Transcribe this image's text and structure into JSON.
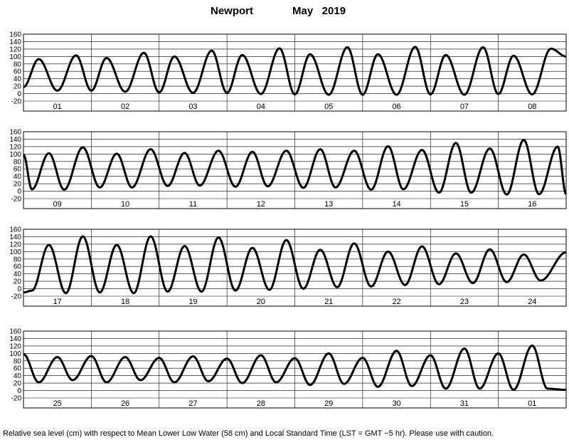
{
  "header": {
    "station": "Newport",
    "month_year": "May   2019"
  },
  "footer": {
    "caption": "Relative sea level (cm) with respect to Mean Lower Low Water (58 cm) and Local Standard Time (LST = GMT −5 hr). Please use with caution."
  },
  "chart_data": {
    "type": "line",
    "y_unit": "cm",
    "ylim": [
      -20,
      160
    ],
    "yticks": [
      -20,
      0,
      20,
      40,
      60,
      80,
      100,
      120,
      140,
      160
    ],
    "grid": true,
    "panels": [
      {
        "day_labels": [
          "01",
          "02",
          "03",
          "04",
          "05",
          "06",
          "07",
          "08"
        ],
        "extrema": [
          [
            0,
            18
          ],
          [
            0.45,
            93
          ],
          [
            1,
            8
          ],
          [
            1.55,
            103
          ],
          [
            2,
            8
          ],
          [
            2.45,
            96
          ],
          [
            3,
            5
          ],
          [
            3.55,
            110
          ],
          [
            4,
            3
          ],
          [
            4.45,
            100
          ],
          [
            5,
            2
          ],
          [
            5.55,
            116
          ],
          [
            6,
            2
          ],
          [
            6.45,
            104
          ],
          [
            7,
            -1
          ],
          [
            7.55,
            122
          ],
          [
            8,
            -2
          ],
          [
            8.45,
            106
          ],
          [
            9,
            -3
          ],
          [
            9.55,
            125
          ],
          [
            10,
            -3
          ],
          [
            10.45,
            106
          ],
          [
            11,
            -3
          ],
          [
            11.55,
            126
          ],
          [
            12,
            -2
          ],
          [
            12.45,
            104
          ],
          [
            13,
            -3
          ],
          [
            13.55,
            125
          ],
          [
            14,
            -1
          ],
          [
            14.45,
            102
          ],
          [
            15,
            -2
          ],
          [
            15.55,
            121
          ],
          [
            16,
            100
          ]
        ]
      },
      {
        "day_labels": [
          "09",
          "10",
          "11",
          "12",
          "13",
          "14",
          "15",
          "16"
        ],
        "extrema": [
          [
            0,
            98
          ],
          [
            0.25,
            5
          ],
          [
            0.75,
            102
          ],
          [
            1.2,
            4
          ],
          [
            1.75,
            118
          ],
          [
            2.25,
            10
          ],
          [
            2.75,
            101
          ],
          [
            3.2,
            10
          ],
          [
            3.75,
            113
          ],
          [
            4.25,
            14
          ],
          [
            4.75,
            103
          ],
          [
            5.2,
            15
          ],
          [
            5.75,
            109
          ],
          [
            6.25,
            12
          ],
          [
            6.75,
            106
          ],
          [
            7.2,
            13
          ],
          [
            7.75,
            109
          ],
          [
            8.25,
            9
          ],
          [
            8.75,
            113
          ],
          [
            9.2,
            10
          ],
          [
            9.75,
            109
          ],
          [
            10.25,
            4
          ],
          [
            10.75,
            121
          ],
          [
            11.2,
            5
          ],
          [
            11.75,
            111
          ],
          [
            12.25,
            -4
          ],
          [
            12.75,
            130
          ],
          [
            13.2,
            -4
          ],
          [
            13.75,
            115
          ],
          [
            14.25,
            -9
          ],
          [
            14.75,
            138
          ],
          [
            15.2,
            -8
          ],
          [
            15.75,
            120
          ],
          [
            16,
            -8
          ]
        ]
      },
      {
        "day_labels": [
          "17",
          "18",
          "19",
          "20",
          "21",
          "22",
          "23",
          "24"
        ],
        "extrema": [
          [
            0,
            -10
          ],
          [
            0.25,
            -5
          ],
          [
            0.75,
            118
          ],
          [
            1.25,
            -12
          ],
          [
            1.75,
            141
          ],
          [
            2.25,
            -10
          ],
          [
            2.75,
            118
          ],
          [
            3.25,
            -12
          ],
          [
            3.75,
            141
          ],
          [
            4.25,
            -8
          ],
          [
            4.75,
            115
          ],
          [
            5.25,
            -8
          ],
          [
            5.75,
            138
          ],
          [
            6.25,
            -5
          ],
          [
            6.75,
            110
          ],
          [
            7.25,
            -3
          ],
          [
            7.75,
            131
          ],
          [
            8.25,
            0
          ],
          [
            8.75,
            105
          ],
          [
            9.25,
            4
          ],
          [
            9.75,
            122
          ],
          [
            10.25,
            6
          ],
          [
            10.75,
            100
          ],
          [
            11.25,
            10
          ],
          [
            11.75,
            114
          ],
          [
            12.25,
            12
          ],
          [
            12.75,
            95
          ],
          [
            13.25,
            15
          ],
          [
            13.75,
            106
          ],
          [
            14.25,
            18
          ],
          [
            14.75,
            92
          ],
          [
            15.25,
            22
          ],
          [
            16,
            98
          ]
        ]
      },
      {
        "day_labels": [
          "25",
          "26",
          "27",
          "28",
          "29",
          "30",
          "31",
          "01"
        ],
        "extrema": [
          [
            0,
            98
          ],
          [
            0.45,
            22
          ],
          [
            1,
            90
          ],
          [
            1.45,
            28
          ],
          [
            2,
            93
          ],
          [
            2.45,
            22
          ],
          [
            3,
            90
          ],
          [
            3.45,
            28
          ],
          [
            4,
            88
          ],
          [
            4.45,
            22
          ],
          [
            5,
            92
          ],
          [
            5.45,
            25
          ],
          [
            6,
            86
          ],
          [
            6.45,
            20
          ],
          [
            7,
            95
          ],
          [
            7.45,
            22
          ],
          [
            8,
            87
          ],
          [
            8.45,
            15
          ],
          [
            9,
            100
          ],
          [
            9.45,
            18
          ],
          [
            10,
            88
          ],
          [
            10.45,
            10
          ],
          [
            11,
            107
          ],
          [
            11.45,
            12
          ],
          [
            12,
            95
          ],
          [
            12.45,
            5
          ],
          [
            13,
            113
          ],
          [
            13.45,
            5
          ],
          [
            14,
            100
          ],
          [
            14.45,
            2
          ],
          [
            15,
            121
          ],
          [
            15.45,
            5
          ],
          [
            16,
            2
          ]
        ]
      }
    ]
  }
}
